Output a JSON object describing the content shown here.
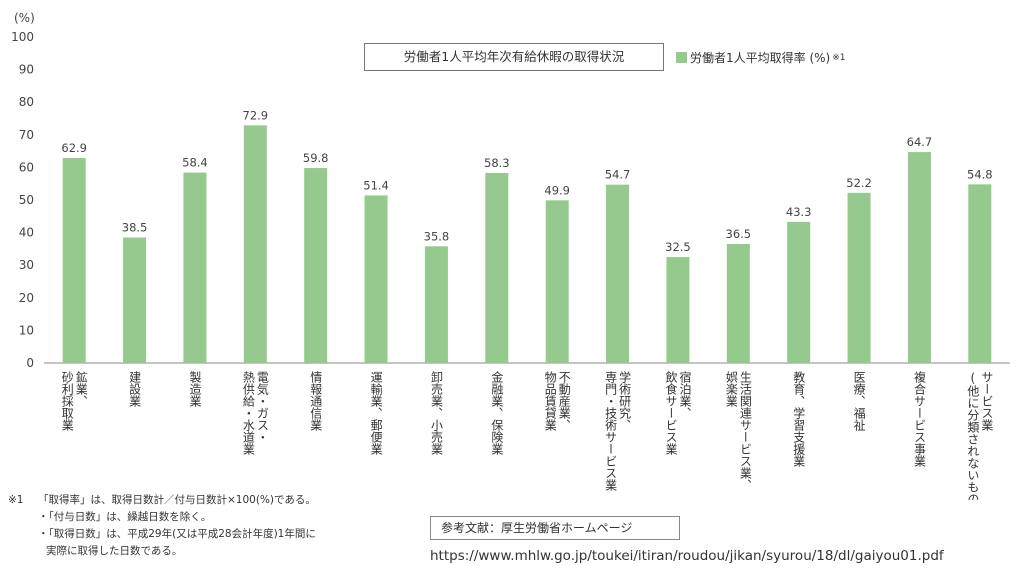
{
  "chart_data": {
    "type": "bar",
    "title": "労働者1人平均年次有給休暇の取得状況",
    "y_unit_label": "(%)",
    "ylim": [
      0,
      100
    ],
    "y_ticks": [
      "0",
      "10",
      "20",
      "30",
      "40",
      "50",
      "60",
      "70",
      "80",
      "90",
      "100"
    ],
    "grid": false,
    "legend_position": "top-right",
    "bar_color": "#95c98d",
    "series": [
      {
        "name": "労働者1人平均取得率 (%)",
        "name_note": "※1",
        "values": [
          62.9,
          38.5,
          58.4,
          72.9,
          59.8,
          51.4,
          35.8,
          58.3,
          49.9,
          54.7,
          32.5,
          36.5,
          43.3,
          52.2,
          64.7,
          54.8
        ]
      }
    ],
    "categories": [
      [
        "鉱業、",
        "砂利採取業"
      ],
      [
        "建設業"
      ],
      [
        "製造業"
      ],
      [
        "電気・ガス・",
        "熱供給・水道業"
      ],
      [
        "情報通信業"
      ],
      [
        "運輸業、郵便業"
      ],
      [
        "卸売業、小売業"
      ],
      [
        "金融業、保険業"
      ],
      [
        "不動産業、",
        "物品賃貸業"
      ],
      [
        "学術研究、",
        "専門・技術サービス業"
      ],
      [
        "宿泊業、",
        "飲食サービス業"
      ],
      [
        "生活関連サービス業、",
        "娯楽業"
      ],
      [
        "教育、学習支援業"
      ],
      [
        "医療、福祉"
      ],
      [
        "複合サービス事業"
      ],
      [
        "サービス業",
        "(他に分類されないもの)"
      ]
    ],
    "value_labels": [
      "62.9",
      "38.5",
      "58.4",
      "72.9",
      "59.8",
      "51.4",
      "35.8",
      "58.3",
      "49.9",
      "54.7",
      "32.5",
      "36.5",
      "43.3",
      "52.2",
      "64.7",
      "54.8"
    ]
  },
  "notes": {
    "mark": "※1",
    "line1": "「取得率」は、取得日数計／付与日数計×100(%)である。",
    "line2": "・「付与日数」は、繰越日数を除く。",
    "line3": "・「取得日数」は、平成29年(又は平成28会計年度)1年間に",
    "line4": "実際に取得した日数である。"
  },
  "reference": {
    "label": "参考文献：厚生労働省ホームページ",
    "url": "https://www.mhlw.go.jp/toukei/itiran/roudou/jikan/syurou/18/dl/gaiyou01.pdf"
  }
}
